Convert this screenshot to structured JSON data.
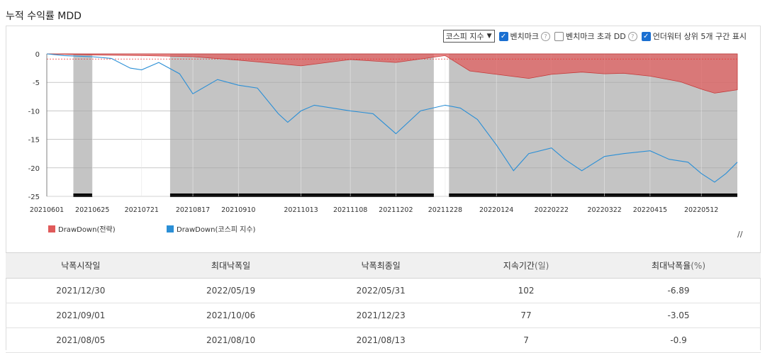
{
  "page": {
    "title": "누적 수익률 MDD"
  },
  "controls": {
    "benchmark_select": "코스피 지수",
    "benchmark_label": "벤치마크",
    "excess_dd_label": "벤치마크 초과 DD",
    "underwater_label": "언더워터 상위 5개 구간 표시",
    "benchmark_checked": true,
    "excess_dd_checked": false,
    "underwater_checked": true,
    "help_glyph": "?"
  },
  "chart_data": {
    "type": "area",
    "ylim": [
      -25,
      0
    ],
    "yticks": [
      "0",
      "-5",
      "-10",
      "-15",
      "-20",
      "-25"
    ],
    "xticks": [
      "20210601",
      "20210625",
      "20210721",
      "20210817",
      "20210910",
      "20211013",
      "20211108",
      "20211202",
      "20211228",
      "20220124",
      "20220222",
      "20220322",
      "20220415",
      "20220512"
    ],
    "reference_line": -0.9,
    "underwater_periods": [
      {
        "start": "20210615",
        "end": "20210625"
      },
      {
        "start": "20210805",
        "end": "20211222"
      },
      {
        "start": "20211230",
        "end": "20220531"
      }
    ],
    "series": [
      {
        "name": "DrawDown(전략)",
        "color": "#e05a5a",
        "x": [
          "20210601",
          "20210625",
          "20210721",
          "20210817",
          "20210910",
          "20211013",
          "20211108",
          "20211202",
          "20211228",
          "20220110",
          "20220124",
          "20220210",
          "20220222",
          "20220310",
          "20220322",
          "20220401",
          "20220415",
          "20220501",
          "20220512",
          "20220519",
          "20220531"
        ],
        "values": [
          0,
          -0.2,
          -0.3,
          -0.5,
          -1.1,
          -2.1,
          -1.0,
          -1.5,
          -0.3,
          -3.0,
          -3.6,
          -4.3,
          -3.6,
          -3.2,
          -3.5,
          -3.4,
          -3.9,
          -4.9,
          -6.2,
          -6.89,
          -6.3
        ]
      },
      {
        "name": "DrawDown(코스피 지수)",
        "color": "#2b8fd6",
        "x": [
          "20210601",
          "20210610",
          "20210625",
          "20210705",
          "20210715",
          "20210721",
          "20210730",
          "20210810",
          "20210817",
          "20210830",
          "20210910",
          "20210920",
          "20211001",
          "20211006",
          "20211013",
          "20211020",
          "20211108",
          "20211120",
          "20211202",
          "20211215",
          "20211228",
          "20220105",
          "20220114",
          "20220124",
          "20220202",
          "20220210",
          "20220222",
          "20220301",
          "20220310",
          "20220322",
          "20220401",
          "20220415",
          "20220425",
          "20220505",
          "20220512",
          "20220519",
          "20220525",
          "20220531"
        ],
        "values": [
          0,
          -0.3,
          -0.5,
          -0.8,
          -2.5,
          -2.8,
          -1.5,
          -3.5,
          -7.0,
          -4.5,
          -5.5,
          -6.0,
          -10.5,
          -12.0,
          -10.0,
          -9.0,
          -10.0,
          -10.5,
          -14.0,
          -10.0,
          -9.0,
          -9.5,
          -11.5,
          -16.0,
          -20.5,
          -17.5,
          -16.5,
          -18.5,
          -20.5,
          -18.0,
          -17.5,
          -17.0,
          -18.5,
          -19.0,
          -21.0,
          -22.5,
          -21.0,
          -19.0
        ]
      }
    ]
  },
  "table": {
    "headers": [
      "낙폭시작일",
      "최대낙폭일",
      "낙폭최종일",
      "지속기간",
      "최대낙폭율"
    ],
    "header_units": [
      "",
      "",
      "",
      "(일)",
      "(%)"
    ],
    "rows": [
      [
        "2021/12/30",
        "2022/05/19",
        "2022/05/31",
        "102",
        "-6.89"
      ],
      [
        "2021/09/01",
        "2021/10/06",
        "2021/12/23",
        "77",
        "-3.05"
      ],
      [
        "2021/08/05",
        "2021/08/10",
        "2021/08/13",
        "7",
        "-0.9"
      ]
    ]
  },
  "icons": {
    "resize": "resize-icon",
    "help": "help-icon",
    "check": "check-icon"
  }
}
